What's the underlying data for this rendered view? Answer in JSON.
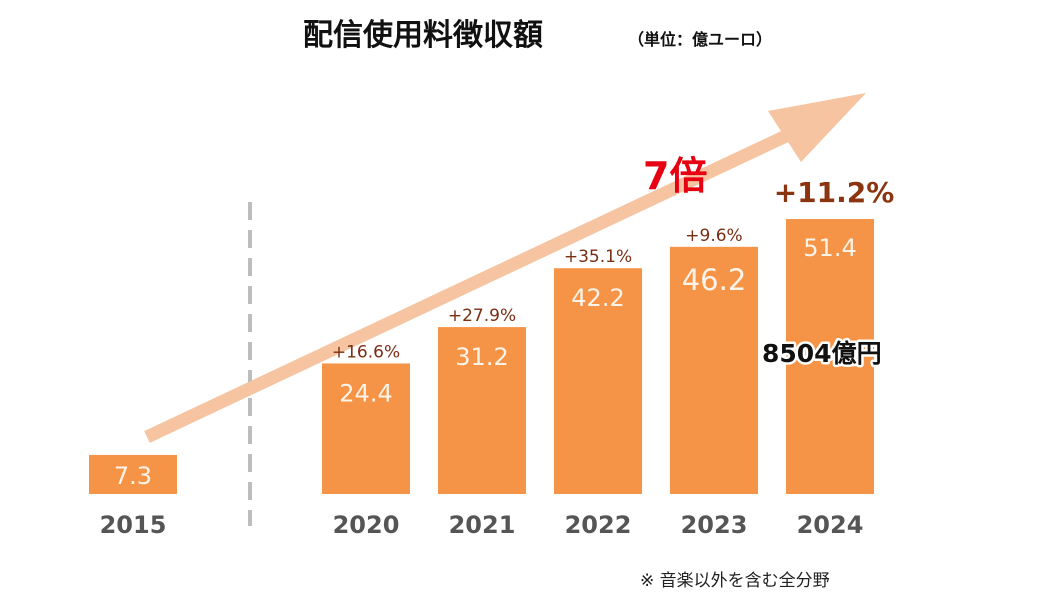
{
  "title": "配信使用料徴収額",
  "unit": "（単位：億ユーロ）",
  "note": "※ 音楽以外を含む全分野",
  "chart_data": {
    "type": "bar",
    "title": "配信使用料徴収額",
    "ylabel": "億ユーロ",
    "xlabel": "",
    "ylim": [
      0,
      55
    ],
    "grid": false,
    "categories": [
      "2015",
      "2020",
      "2021",
      "2022",
      "2023",
      "2024"
    ],
    "values": [
      7.3,
      24.4,
      31.2,
      42.2,
      46.2,
      51.4
    ],
    "value_labels": [
      "7.3",
      "24.4",
      "31.2",
      "42.2",
      "46.2",
      "51.4"
    ],
    "growth_labels": [
      "",
      "+16.6%",
      "+27.9%",
      "+35.1%",
      "+9.6%",
      "+11.2%"
    ],
    "annotations": {
      "multiplier": "7倍",
      "yen_equivalent": "8504億円"
    },
    "colors": {
      "bar": "#f59446",
      "bar_label": "#fdf3e8",
      "growth": "#7a2e14",
      "growth_highlight": "#8b3410",
      "axis_label": "#555555",
      "arrow": "#f6c4a0",
      "multiplier": "#e60012",
      "divider": "#bdbdbd"
    }
  }
}
